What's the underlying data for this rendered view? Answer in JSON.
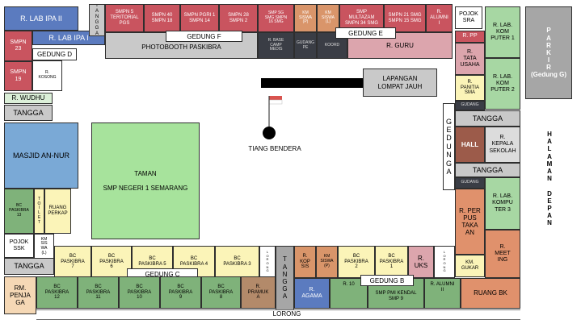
{
  "rooms": {
    "lab_ipa_2": "R. LAB IPA II",
    "lab_ipa_1": "R. LAB IPA I",
    "tangga_top": "T\nA\nN\nG\nG\nA",
    "smpn5": "SMPN 5\nTERITORIAL\nPGS",
    "smpn40": "SMPN 40\nSMPN 18",
    "smpn_pgri1": "SMPN PGRI 1\nSMPN 14",
    "smpn28": "SMPN 28\nSMPN 2",
    "smp_sg": "SMP SG\nSMG SMPN\n16 SMG",
    "km_siswa_p": "KM\nSISWA\n(P)",
    "km_siswa_l": "KM\nSISWA\n(L)",
    "smp_multazam": "SMP\nMULTAZAM\nSMPN 34 SMG",
    "smpn21": "SMPN 21 SMG\nSMPN 15 SMG",
    "alumni_1": "R.\nALUMNI\nI",
    "pojok_sra": "POJOK\nSRA",
    "lab_komputer_1": "R. LAB.\nKOM\nPUTER 1",
    "parkir": "P\nA\nR\nK\nI\nR\n(Gedung G)",
    "smpn23": "SMPN\n23",
    "smpn19": "SMPN\n19",
    "gedung_d": "GEDUNG D",
    "r_kosong": "R.\nKOSONG",
    "photobooth": "PHOTOBOOTH PASKIBRA",
    "gedung_f": "GEDUNG F",
    "ruang_kecil_1": "R. BASE\nCAMP\nMEDIS",
    "gudang_2": "GUDANG\nPE",
    "ruang_kecil_3": "KOORD",
    "gedung_e": "GEDUNG E",
    "r_guru": "R. GURU",
    "r_pp": "R. PP",
    "tata_usaha": "R.\nTATA\nUSAHA",
    "lab_komputer_2": "R. LAB.\nKOM\nPUTER 2",
    "r_wudhu": "R. WUDHU",
    "tangga_left": "TANGGA",
    "panitia_sma": "R.\nPANITIA\nSMA",
    "gudang_r": "GUDANG",
    "lapangan": "LAPANGAN\nLOMPAT JAUH",
    "tiang_bendera": "TIANG BENDERA",
    "gedung_a": "G\nE\nD\nU\nN\nG\nA",
    "tangga_r1": "TANGGA",
    "hall": "HALL",
    "kepala_sekolah": "R.\nKEPALA\nSEKOLAH",
    "halaman_depan": "H\nA\nL\nA\nM\nA\nN\n\nD\nE\nP\nA\nN",
    "masjid": "MASJID AN-NUR",
    "taman": "TAMAN\n\nSMP NEGERI 1 SEMARANG",
    "tangga_r2": "TANGGA",
    "gudang_r2": "GUDANG",
    "bc_paskibra_13": "BC\nPASKIBRA\n13",
    "toilet": "T\nO\nI\nL\nE\nT",
    "ruang_perkap": "RUANG\nPERKAP",
    "lab_komputer_3": "R. LAB.\nKOMPU\nTER 3",
    "perpustakaan": "R. PER\nPUS\nTAKA\nAN",
    "pojok_ssk": "POJOK\nSSK",
    "km_wa": "KM\nSIS\nWA\n(L)",
    "bc7": "BC\nPASKIBRA\n7",
    "bc6": "BC\nPASKIBRA\n6",
    "bc5": "BC\nPASKIBRA 5",
    "bc4": "BC\nPASKIBRA 4",
    "bc3": "BC\nPASKIBRA 3",
    "lorong_v1": "L\nO\nR\nO\nN\nG",
    "tangga_mid": "T\nA\nN\nG\nG\nA",
    "r_kopsis": "R.\nKOP\nSIS",
    "km_siswa_p2": "KM\nSISWA\n(P)",
    "bc2": "BC\nPASKIBRA\n2",
    "bc1": "BC\nPASKIBRA\n1",
    "r_uks": "R.\nUKS",
    "lorong_v2": "L\nO\nR\nO\nN\nG",
    "meeting": "R.\nMEET\nING",
    "km_gukar": "KM.\nGUKAR",
    "tangga_bl": "TANGGA",
    "gedung_c": "GEDUNG C",
    "rm_pengaga": "RM.\nPENJA\nGA",
    "bc12": "BC\nPASKIBRA\n12",
    "bc11": "BC\nPASKIBRA\n11",
    "bc10": "BC\nPASKIBRA\n10",
    "bc9": "BC\nPASKIBRA\n9",
    "bc8": "BC\nPASKIBRA\n8",
    "r_pramuka": "R.\nPRAMUK\nA",
    "r_agama": "R.\nAGAMA",
    "r10": "R. 10",
    "gedung_b": "GEDUNG B",
    "smp_pmi": "SMP PMI KENDAL\nSMP 9",
    "alumni_2": "R. ALUMNI\nII",
    "ruang_bk": "RUANG BK",
    "lorong_bottom": "LORONG"
  }
}
